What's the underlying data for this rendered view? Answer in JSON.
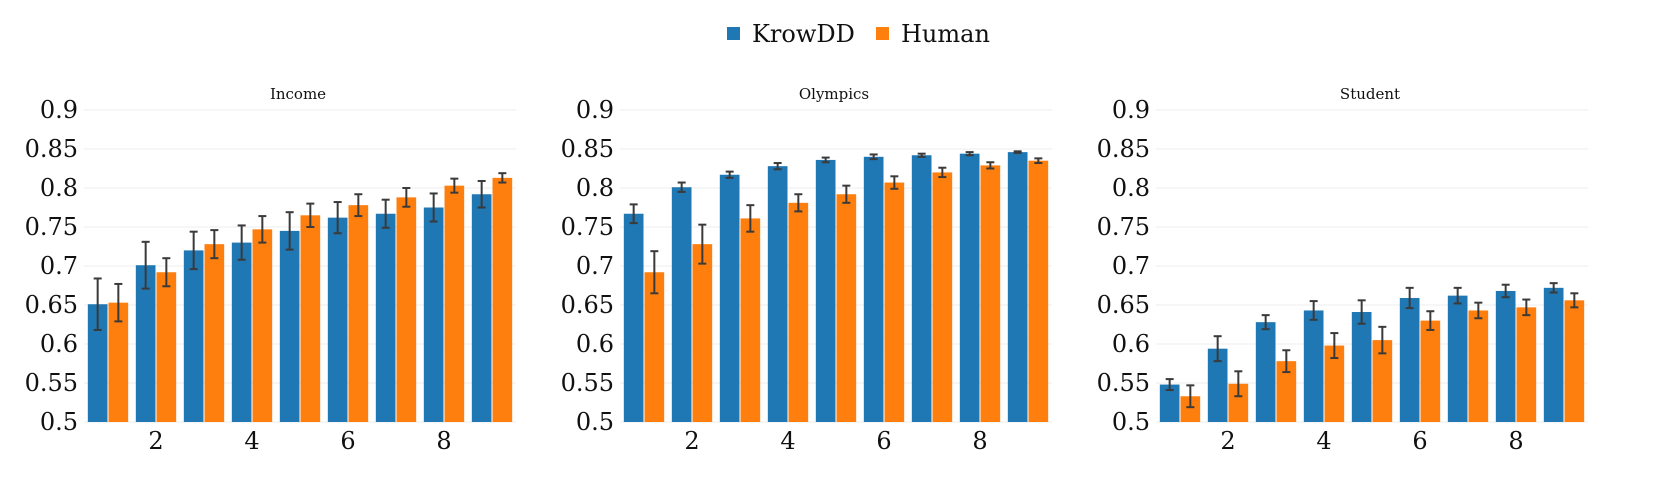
{
  "legend": {
    "placement": "top-center",
    "entries": [
      {
        "name": "KrowDD",
        "color": "#1f77b4"
      },
      {
        "name": "Human",
        "color": "#ff7f0e"
      }
    ]
  },
  "chart_data": [
    {
      "type": "bar",
      "title": "Income",
      "x": [
        1,
        2,
        3,
        4,
        5,
        6,
        7,
        8,
        9
      ],
      "x_tick_labels": [
        "2",
        "4",
        "6",
        "8"
      ],
      "x_tick_values": [
        2,
        4,
        6,
        8
      ],
      "ylim": [
        0.5,
        0.9
      ],
      "y_ticks": [
        "0.5",
        "0.55",
        "0.6",
        "0.65",
        "0.7",
        "0.75",
        "0.8",
        "0.85",
        "0.9"
      ],
      "grid": true,
      "series": [
        {
          "name": "KrowDD",
          "color": "#1f77b4",
          "values": [
            0.651,
            0.701,
            0.72,
            0.73,
            0.745,
            0.762,
            0.767,
            0.775,
            0.792
          ],
          "errors": [
            0.033,
            0.03,
            0.024,
            0.022,
            0.024,
            0.02,
            0.018,
            0.018,
            0.017
          ]
        },
        {
          "name": "Human",
          "color": "#ff7f0e",
          "values": [
            0.653,
            0.692,
            0.728,
            0.747,
            0.765,
            0.778,
            0.788,
            0.803,
            0.813
          ],
          "errors": [
            0.024,
            0.018,
            0.018,
            0.017,
            0.015,
            0.014,
            0.012,
            0.009,
            0.006
          ]
        }
      ]
    },
    {
      "type": "bar",
      "title": "Olympics",
      "x": [
        1,
        2,
        3,
        4,
        5,
        6,
        7,
        8,
        9
      ],
      "x_tick_labels": [
        "2",
        "4",
        "6",
        "8"
      ],
      "x_tick_values": [
        2,
        4,
        6,
        8
      ],
      "ylim": [
        0.5,
        0.9
      ],
      "y_ticks": [
        "0.5",
        "0.55",
        "0.6",
        "0.65",
        "0.7",
        "0.75",
        "0.8",
        "0.85",
        "0.9"
      ],
      "grid": true,
      "series": [
        {
          "name": "KrowDD",
          "color": "#1f77b4",
          "values": [
            0.767,
            0.801,
            0.817,
            0.828,
            0.836,
            0.84,
            0.842,
            0.844,
            0.846
          ],
          "errors": [
            0.012,
            0.006,
            0.004,
            0.004,
            0.003,
            0.003,
            0.002,
            0.002,
            0.001
          ]
        },
        {
          "name": "Human",
          "color": "#ff7f0e",
          "values": [
            0.692,
            0.728,
            0.761,
            0.781,
            0.792,
            0.807,
            0.82,
            0.829,
            0.835
          ],
          "errors": [
            0.027,
            0.025,
            0.017,
            0.011,
            0.011,
            0.008,
            0.006,
            0.004,
            0.003
          ]
        }
      ]
    },
    {
      "type": "bar",
      "title": "Student",
      "x": [
        1,
        2,
        3,
        4,
        5,
        6,
        7,
        8,
        9
      ],
      "x_tick_labels": [
        "2",
        "4",
        "6",
        "8"
      ],
      "x_tick_values": [
        2,
        4,
        6,
        8
      ],
      "ylim": [
        0.5,
        0.9
      ],
      "y_ticks": [
        "0.5",
        "0.55",
        "0.6",
        "0.65",
        "0.7",
        "0.75",
        "0.8",
        "0.85",
        "0.9"
      ],
      "grid": true,
      "series": [
        {
          "name": "KrowDD",
          "color": "#1f77b4",
          "values": [
            0.548,
            0.594,
            0.628,
            0.643,
            0.641,
            0.659,
            0.662,
            0.668,
            0.672
          ],
          "errors": [
            0.007,
            0.016,
            0.009,
            0.012,
            0.015,
            0.013,
            0.01,
            0.008,
            0.006
          ]
        },
        {
          "name": "Human",
          "color": "#ff7f0e",
          "values": [
            0.533,
            0.549,
            0.578,
            0.598,
            0.605,
            0.63,
            0.643,
            0.647,
            0.656
          ],
          "errors": [
            0.014,
            0.016,
            0.014,
            0.016,
            0.017,
            0.012,
            0.01,
            0.01,
            0.009
          ]
        }
      ]
    }
  ]
}
